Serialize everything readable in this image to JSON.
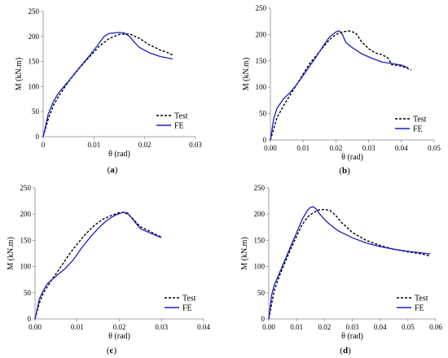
{
  "chart_data": [
    {
      "type": "line",
      "caption": {
        "open": "(",
        "letter": "a",
        "close": ")"
      },
      "xlabel": "θ (rad)",
      "ylabel": "M (kN.m)",
      "xlim": [
        0,
        0.03
      ],
      "ylim": [
        0,
        250
      ],
      "xticks": [
        "0",
        "0.01",
        "0.02",
        "0.03"
      ],
      "yticks": [
        "0",
        "50",
        "100",
        "150",
        "200",
        "250"
      ],
      "legend": {
        "placement": "bottom-right"
      },
      "series": [
        {
          "name": "Test",
          "color": "#000000",
          "dash": true,
          "x": [
            0,
            0.001,
            0.002,
            0.003,
            0.005,
            0.007,
            0.009,
            0.011,
            0.013,
            0.015,
            0.017,
            0.019,
            0.021,
            0.023,
            0.024,
            0.0255
          ],
          "y": [
            0,
            35,
            62,
            80,
            110,
            135,
            158,
            180,
            196,
            204,
            205,
            196,
            183,
            173,
            170,
            163
          ]
        },
        {
          "name": "FE",
          "color": "#1c1cc8",
          "dash": false,
          "x": [
            0,
            0.001,
            0.002,
            0.003,
            0.005,
            0.007,
            0.009,
            0.011,
            0.012,
            0.013,
            0.015,
            0.016,
            0.017,
            0.018,
            0.019,
            0.021,
            0.023,
            0.0255
          ],
          "y": [
            0,
            45,
            70,
            87,
            111,
            136,
            160,
            186,
            200,
            206,
            208,
            207,
            200,
            188,
            178,
            167,
            160,
            155
          ]
        }
      ]
    },
    {
      "type": "line",
      "caption": {
        "open": "(",
        "letter": "b",
        "close": ")"
      },
      "xlabel": "θ (rad)",
      "ylabel": "M (kN.m)",
      "xlim": [
        0,
        0.05
      ],
      "ylim": [
        0,
        250
      ],
      "xticks": [
        "0.00",
        "0.01",
        "0.02",
        "0.03",
        "0.04",
        "0.05"
      ],
      "yticks": [
        "0",
        "50",
        "100",
        "150",
        "200",
        "250"
      ],
      "legend": {
        "placement": "bottom-right"
      },
      "series": [
        {
          "name": "Test",
          "color": "#000000",
          "dash": true,
          "x": [
            0,
            0.002,
            0.004,
            0.006,
            0.008,
            0.01,
            0.012,
            0.014,
            0.016,
            0.018,
            0.02,
            0.022,
            0.024,
            0.026,
            0.028,
            0.03,
            0.032,
            0.034,
            0.036,
            0.037,
            0.04,
            0.043
          ],
          "y": [
            0,
            42,
            65,
            85,
            105,
            125,
            145,
            160,
            175,
            190,
            200,
            205,
            207,
            203,
            185,
            173,
            165,
            162,
            155,
            143,
            140,
            133
          ]
        },
        {
          "name": "FE",
          "color": "#1c1cc8",
          "dash": false,
          "x": [
            0,
            0.001,
            0.002,
            0.004,
            0.006,
            0.008,
            0.01,
            0.012,
            0.014,
            0.016,
            0.018,
            0.02,
            0.021,
            0.022,
            0.023,
            0.025,
            0.028,
            0.031,
            0.034,
            0.037,
            0.04,
            0.042
          ],
          "y": [
            0,
            40,
            60,
            78,
            90,
            105,
            122,
            140,
            158,
            177,
            195,
            205,
            207,
            200,
            185,
            175,
            163,
            155,
            148,
            145,
            142,
            137
          ]
        }
      ]
    },
    {
      "type": "line",
      "caption": {
        "open": "(",
        "letter": "c",
        "close": ")"
      },
      "xlabel": "θ (rad)",
      "ylabel": "M (kN.m)",
      "xlim": [
        0,
        0.04
      ],
      "ylim": [
        0,
        250
      ],
      "xticks": [
        "0.00",
        "0.01",
        "0.02",
        "0.03",
        "0.04"
      ],
      "yticks": [
        "0",
        "50",
        "100",
        "150",
        "200",
        "250"
      ],
      "legend": {
        "placement": "bottom-right"
      },
      "series": [
        {
          "name": "Test",
          "color": "#000000",
          "dash": true,
          "x": [
            0,
            0.001,
            0.002,
            0.004,
            0.006,
            0.008,
            0.01,
            0.012,
            0.014,
            0.016,
            0.018,
            0.02,
            0.021,
            0.022,
            0.023,
            0.025,
            0.027,
            0.029,
            0.03
          ],
          "y": [
            0,
            30,
            50,
            75,
            98,
            122,
            143,
            162,
            178,
            190,
            197,
            203,
            203,
            200,
            193,
            176,
            168,
            160,
            156
          ]
        },
        {
          "name": "FE",
          "color": "#1c1cc8",
          "dash": false,
          "x": [
            0,
            0.001,
            0.002,
            0.003,
            0.005,
            0.007,
            0.009,
            0.011,
            0.013,
            0.015,
            0.017,
            0.019,
            0.021,
            0.022,
            0.023,
            0.025,
            0.027,
            0.029,
            0.03
          ],
          "y": [
            0,
            38,
            55,
            68,
            82,
            95,
            112,
            135,
            155,
            173,
            188,
            198,
            204,
            202,
            192,
            172,
            165,
            158,
            155
          ]
        }
      ]
    },
    {
      "type": "line",
      "caption": {
        "open": "(",
        "letter": "d",
        "close": ")"
      },
      "xlabel": "θ (rad)",
      "ylabel": "M (kN.m)",
      "xlim": [
        0,
        0.06
      ],
      "ylim": [
        0,
        250
      ],
      "xticks": [
        "0.00",
        "0.01",
        "0.02",
        "0.03",
        "0.04",
        "0.05",
        "0.06"
      ],
      "yticks": [
        "0",
        "50",
        "100",
        "150",
        "200",
        "250"
      ],
      "legend": {
        "placement": "bottom-right"
      },
      "series": [
        {
          "name": "Test",
          "color": "#000000",
          "dash": true,
          "x": [
            0,
            0.001,
            0.002,
            0.004,
            0.006,
            0.008,
            0.01,
            0.012,
            0.014,
            0.016,
            0.018,
            0.02,
            0.022,
            0.024,
            0.026,
            0.028,
            0.03,
            0.035,
            0.04,
            0.045,
            0.05,
            0.055,
            0.058
          ],
          "y": [
            0,
            28,
            55,
            85,
            110,
            135,
            158,
            180,
            195,
            203,
            208,
            209,
            207,
            198,
            185,
            175,
            165,
            150,
            140,
            133,
            128,
            124,
            120
          ]
        },
        {
          "name": "FE",
          "color": "#1c1cc8",
          "dash": false,
          "x": [
            0,
            0.001,
            0.002,
            0.004,
            0.006,
            0.008,
            0.01,
            0.012,
            0.014,
            0.015,
            0.016,
            0.017,
            0.018,
            0.02,
            0.022,
            0.025,
            0.03,
            0.035,
            0.04,
            0.045,
            0.05,
            0.055,
            0.058
          ],
          "y": [
            0,
            45,
            65,
            90,
            115,
            140,
            165,
            190,
            208,
            213,
            214,
            210,
            202,
            190,
            180,
            168,
            155,
            145,
            138,
            133,
            129,
            126,
            124
          ]
        }
      ]
    }
  ]
}
